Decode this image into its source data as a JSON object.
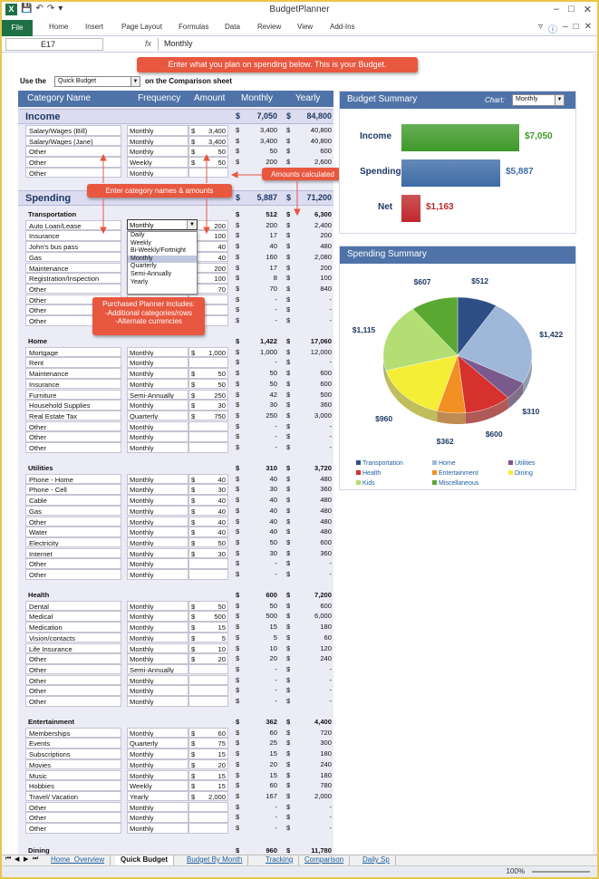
{
  "app": {
    "title": "BudgetPlanner"
  },
  "ribbon": {
    "tabs": [
      "File",
      "Home",
      "Insert",
      "Page Layout",
      "Formulas",
      "Data",
      "Review",
      "View",
      "Add-Ins"
    ]
  },
  "formula_bar": {
    "cell": "E17",
    "fx": "fx",
    "value": "Monthly"
  },
  "callouts": {
    "top": "Enter what you plan on spending below.  This is your Budget.",
    "amounts": "Amounts calculated",
    "names": "Enter category names & amounts",
    "purchased_1": "Purchased Planner includes:",
    "purchased_2": "-Additional categories/rows",
    "purchased_3": "-Alternate currencies"
  },
  "use_bar": {
    "prefix": "Use the",
    "select": "Quick Budget",
    "suffix": "on the Comparison sheet"
  },
  "columns": {
    "category": "Category Name",
    "frequency": "Frequency",
    "amount": "Amount",
    "monthly": "Monthly",
    "yearly": "Yearly"
  },
  "income": {
    "title": "Income",
    "monthly": "7,050",
    "yearly": "84,800",
    "rows": [
      {
        "name": "Salary/Wages (Bill)",
        "freq": "Monthly",
        "amt": "3,400",
        "m": "3,400",
        "y": "40,800"
      },
      {
        "name": "Salary/Wages (Jane)",
        "freq": "Monthly",
        "amt": "3,400",
        "m": "3,400",
        "y": "40,800"
      },
      {
        "name": "Other",
        "freq": "Monthly",
        "amt": "50",
        "m": "50",
        "y": "600"
      },
      {
        "name": "Other",
        "freq": "Weekly",
        "amt": "50",
        "m": "200",
        "y": "2,600"
      },
      {
        "name": "Other",
        "freq": "Monthly",
        "amt": "",
        "m": "",
        "y": ""
      }
    ]
  },
  "spending": {
    "title": "Spending",
    "monthly": "5,887",
    "yearly": "71,200"
  },
  "transport": {
    "title": "Transportation",
    "monthly": "512",
    "yearly": "6,300",
    "rows": [
      {
        "name": "Auto Loan/Lease",
        "freq": "Monthly",
        "amt": "200",
        "m": "200",
        "y": "2,400"
      },
      {
        "name": "Insurance",
        "freq": "",
        "amt": "100",
        "m": "17",
        "y": "200"
      },
      {
        "name": "John's bus pass",
        "freq": "",
        "amt": "40",
        "m": "40",
        "y": "480"
      },
      {
        "name": "Gas",
        "freq": "",
        "amt": "40",
        "m": "160",
        "y": "2,080"
      },
      {
        "name": "Maintenance",
        "freq": "",
        "amt": "200",
        "m": "17",
        "y": "200"
      },
      {
        "name": "Registration/Inspection",
        "freq": "",
        "amt": "100",
        "m": "8",
        "y": "100"
      },
      {
        "name": "Other",
        "freq": "Monthly",
        "amt": "70",
        "m": "70",
        "y": "840"
      },
      {
        "name": "Other",
        "freq": "Monthly",
        "amt": "",
        "m": "-",
        "y": "-"
      },
      {
        "name": "Other",
        "freq": "",
        "amt": "",
        "m": "-",
        "y": "-"
      },
      {
        "name": "Other",
        "freq": "",
        "amt": "",
        "m": "-",
        "y": "-"
      }
    ]
  },
  "dropdown": {
    "value": "Monthly",
    "options": [
      "Daily",
      "Weekly",
      "Bi-Weekly/Fortnight",
      "Monthly",
      "Quarterly",
      "Semi-Annually",
      "Yearly"
    ]
  },
  "home": {
    "title": "Home",
    "monthly": "1,422",
    "yearly": "17,060",
    "rows": [
      {
        "name": "Mortgage",
        "freq": "Monthly",
        "amt": "1,000",
        "m": "1,000",
        "y": "12,000"
      },
      {
        "name": "Rent",
        "freq": "Monthly",
        "amt": "",
        "m": "-",
        "y": "-"
      },
      {
        "name": "Maintenance",
        "freq": "Monthly",
        "amt": "50",
        "m": "50",
        "y": "600"
      },
      {
        "name": "Insurance",
        "freq": "Monthly",
        "amt": "50",
        "m": "50",
        "y": "600"
      },
      {
        "name": "Furniture",
        "freq": "Semi-Annually",
        "amt": "250",
        "m": "42",
        "y": "500"
      },
      {
        "name": "Household Supplies",
        "freq": "Monthly",
        "amt": "30",
        "m": "30",
        "y": "360"
      },
      {
        "name": "Real Estate Tax",
        "freq": "Quarterly",
        "amt": "750",
        "m": "250",
        "y": "3,000"
      },
      {
        "name": "Other",
        "freq": "Monthly",
        "amt": "",
        "m": "-",
        "y": "-"
      },
      {
        "name": "Other",
        "freq": "Monthly",
        "amt": "",
        "m": "-",
        "y": "-"
      },
      {
        "name": "Other",
        "freq": "Monthly",
        "amt": "",
        "m": "-",
        "y": "-"
      }
    ]
  },
  "utilities": {
    "title": "Utilities",
    "monthly": "310",
    "yearly": "3,720",
    "rows": [
      {
        "name": "Phone - Home",
        "freq": "Monthly",
        "amt": "40",
        "m": "40",
        "y": "480"
      },
      {
        "name": "Phone - Cell",
        "freq": "Monthly",
        "amt": "30",
        "m": "30",
        "y": "360"
      },
      {
        "name": "Cable",
        "freq": "Monthly",
        "amt": "40",
        "m": "40",
        "y": "480"
      },
      {
        "name": "Gas",
        "freq": "Monthly",
        "amt": "40",
        "m": "40",
        "y": "480"
      },
      {
        "name": "Other",
        "freq": "Monthly",
        "amt": "40",
        "m": "40",
        "y": "480"
      },
      {
        "name": "Water",
        "freq": "Monthly",
        "amt": "40",
        "m": "40",
        "y": "480"
      },
      {
        "name": "Electricity",
        "freq": "Monthly",
        "amt": "50",
        "m": "50",
        "y": "600"
      },
      {
        "name": "Internet",
        "freq": "Monthly",
        "amt": "30",
        "m": "30",
        "y": "360"
      },
      {
        "name": "Other",
        "freq": "Monthly",
        "amt": "",
        "m": "-",
        "y": "-"
      },
      {
        "name": "Other",
        "freq": "Monthly",
        "amt": "",
        "m": "-",
        "y": "-"
      }
    ]
  },
  "health": {
    "title": "Health",
    "monthly": "600",
    "yearly": "7,200",
    "rows": [
      {
        "name": "Dental",
        "freq": "Monthly",
        "amt": "50",
        "m": "50",
        "y": "600"
      },
      {
        "name": "Medical",
        "freq": "Monthly",
        "amt": "500",
        "m": "500",
        "y": "6,000"
      },
      {
        "name": "Medication",
        "freq": "Monthly",
        "amt": "15",
        "m": "15",
        "y": "180"
      },
      {
        "name": "Vision/contacts",
        "freq": "Monthly",
        "amt": "5",
        "m": "5",
        "y": "60"
      },
      {
        "name": "Life Insurance",
        "freq": "Monthly",
        "amt": "10",
        "m": "10",
        "y": "120"
      },
      {
        "name": "Other",
        "freq": "Monthly",
        "amt": "20",
        "m": "20",
        "y": "240"
      },
      {
        "name": "Other",
        "freq": "Semi-Annually",
        "amt": "",
        "m": "-",
        "y": "-"
      },
      {
        "name": "Other",
        "freq": "Monthly",
        "amt": "",
        "m": "-",
        "y": "-"
      },
      {
        "name": "Other",
        "freq": "Monthly",
        "amt": "",
        "m": "-",
        "y": "-"
      },
      {
        "name": "Other",
        "freq": "Monthly",
        "amt": "",
        "m": "-",
        "y": "-"
      }
    ]
  },
  "entertainment": {
    "title": "Entertainment",
    "monthly": "362",
    "yearly": "4,400",
    "rows": [
      {
        "name": "Memberships",
        "freq": "Monthly",
        "amt": "60",
        "m": "60",
        "y": "720"
      },
      {
        "name": "Events",
        "freq": "Quarterly",
        "amt": "75",
        "m": "25",
        "y": "300"
      },
      {
        "name": "Subscriptions",
        "freq": "Monthly",
        "amt": "15",
        "m": "15",
        "y": "180"
      },
      {
        "name": "Movies",
        "freq": "Monthly",
        "amt": "20",
        "m": "20",
        "y": "240"
      },
      {
        "name": "Music",
        "freq": "Monthly",
        "amt": "15",
        "m": "15",
        "y": "180"
      },
      {
        "name": "Hobbies",
        "freq": "Weekly",
        "amt": "15",
        "m": "60",
        "y": "780"
      },
      {
        "name": "Travel/ Vacation",
        "freq": "Yearly",
        "amt": "2,000",
        "m": "167",
        "y": "2,000"
      },
      {
        "name": "Other",
        "freq": "Monthly",
        "amt": "",
        "m": "-",
        "y": "-"
      },
      {
        "name": "Other",
        "freq": "Monthly",
        "amt": "",
        "m": "-",
        "y": "-"
      },
      {
        "name": "Other",
        "freq": "Monthly",
        "amt": "",
        "m": "-",
        "y": "-"
      }
    ]
  },
  "dining": {
    "title": "Dining",
    "monthly": "960",
    "yearly": "11,780"
  },
  "budget_summary": {
    "title": "Budget Summary",
    "chart_label": "Chart:",
    "chart_select": "Monthly",
    "items": [
      {
        "label": "Income",
        "value": 7050,
        "text": "$7,050",
        "color": "#3f9a2a"
      },
      {
        "label": "Spending",
        "value": 5887,
        "text": "$5,887",
        "color": "#3d6ca6"
      },
      {
        "label": "Net",
        "value": 1163,
        "text": "$1,163",
        "color": "#c0282c"
      }
    ]
  },
  "chart_data": {
    "type": "pie",
    "title": "Spending Summary",
    "categories": [
      "Transportation",
      "Home",
      "Utilities",
      "Health",
      "Entertainment",
      "Dining",
      "Kids",
      "Miscellaneous"
    ],
    "values": [
      512,
      1422,
      310,
      600,
      362,
      960,
      1115,
      607
    ],
    "labels": [
      "$512",
      "$1,422",
      "$310",
      "$600",
      "$362",
      "$960",
      "$1,115",
      "$607"
    ],
    "colors": [
      "#2e4f86",
      "#9fb7d8",
      "#7a5a8c",
      "#d6312e",
      "#f29024",
      "#f4ee36",
      "#b2de74",
      "#5aa832"
    ],
    "legend_position": "bottom"
  },
  "sheet_tabs": [
    "Home_Overview",
    "Quick Budget",
    "Budget By Month",
    "Tracking",
    "Comparison",
    "Daily Sp"
  ],
  "status": {
    "zoom": "100%"
  }
}
